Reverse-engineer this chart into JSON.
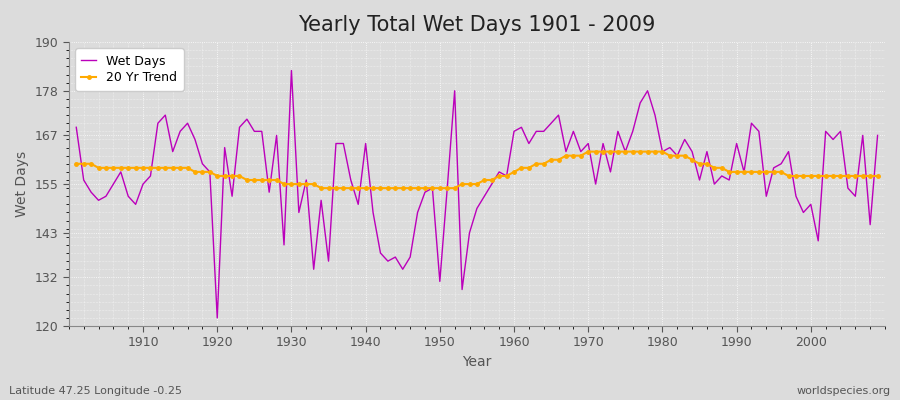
{
  "title": "Yearly Total Wet Days 1901 - 2009",
  "xlabel": "Year",
  "ylabel": "Wet Days",
  "subtitle_left": "Latitude 47.25 Longitude -0.25",
  "subtitle_right": "worldspecies.org",
  "years": [
    1901,
    1902,
    1903,
    1904,
    1905,
    1906,
    1907,
    1908,
    1909,
    1910,
    1911,
    1912,
    1913,
    1914,
    1915,
    1916,
    1917,
    1918,
    1919,
    1920,
    1921,
    1922,
    1923,
    1924,
    1925,
    1926,
    1927,
    1928,
    1929,
    1930,
    1931,
    1932,
    1933,
    1934,
    1935,
    1936,
    1937,
    1938,
    1939,
    1940,
    1941,
    1942,
    1943,
    1944,
    1945,
    1946,
    1947,
    1948,
    1949,
    1950,
    1951,
    1952,
    1953,
    1954,
    1955,
    1956,
    1957,
    1958,
    1959,
    1960,
    1961,
    1962,
    1963,
    1964,
    1965,
    1966,
    1967,
    1968,
    1969,
    1970,
    1971,
    1972,
    1973,
    1974,
    1975,
    1976,
    1977,
    1978,
    1979,
    1980,
    1981,
    1982,
    1983,
    1984,
    1985,
    1986,
    1987,
    1988,
    1989,
    1990,
    1991,
    1992,
    1993,
    1994,
    1995,
    1996,
    1997,
    1998,
    1999,
    2000,
    2001,
    2002,
    2003,
    2004,
    2005,
    2006,
    2007,
    2008,
    2009
  ],
  "wet_days": [
    169,
    156,
    153,
    151,
    152,
    155,
    158,
    152,
    150,
    155,
    157,
    170,
    172,
    163,
    168,
    170,
    166,
    160,
    158,
    122,
    164,
    152,
    169,
    171,
    168,
    168,
    153,
    167,
    140,
    183,
    148,
    156,
    134,
    151,
    136,
    165,
    165,
    156,
    150,
    165,
    148,
    138,
    136,
    137,
    134,
    137,
    148,
    153,
    154,
    131,
    154,
    178,
    129,
    143,
    149,
    152,
    155,
    158,
    157,
    168,
    169,
    165,
    168,
    168,
    170,
    172,
    163,
    168,
    163,
    165,
    155,
    165,
    158,
    168,
    163,
    168,
    175,
    178,
    172,
    163,
    164,
    162,
    166,
    163,
    156,
    163,
    155,
    157,
    156,
    165,
    158,
    170,
    168,
    152,
    159,
    160,
    163,
    152,
    148,
    150,
    141,
    168,
    166,
    168,
    154,
    152,
    167,
    145,
    167
  ],
  "trend": [
    160,
    160,
    160,
    159,
    159,
    159,
    159,
    159,
    159,
    159,
    159,
    159,
    159,
    159,
    159,
    159,
    158,
    158,
    158,
    157,
    157,
    157,
    157,
    156,
    156,
    156,
    156,
    156,
    155,
    155,
    155,
    155,
    155,
    154,
    154,
    154,
    154,
    154,
    154,
    154,
    154,
    154,
    154,
    154,
    154,
    154,
    154,
    154,
    154,
    154,
    154,
    154,
    155,
    155,
    155,
    156,
    156,
    157,
    157,
    158,
    159,
    159,
    160,
    160,
    161,
    161,
    162,
    162,
    162,
    163,
    163,
    163,
    163,
    163,
    163,
    163,
    163,
    163,
    163,
    163,
    162,
    162,
    162,
    161,
    160,
    160,
    159,
    159,
    158,
    158,
    158,
    158,
    158,
    158,
    158,
    158,
    157,
    157,
    157,
    157,
    157,
    157,
    157,
    157,
    157,
    157,
    157,
    157,
    157
  ],
  "wet_days_color": "#bb00bb",
  "trend_color": "#ffaa00",
  "background_color": "#dcdcdc",
  "plot_bg_color": "#dcdcdc",
  "grid_color": "#ffffff",
  "ylim": [
    120,
    190
  ],
  "yticks": [
    120,
    132,
    143,
    155,
    167,
    178,
    190
  ],
  "title_fontsize": 15,
  "label_fontsize": 10,
  "tick_fontsize": 9,
  "xticks": [
    1910,
    1920,
    1930,
    1940,
    1950,
    1960,
    1970,
    1980,
    1990,
    2000
  ]
}
